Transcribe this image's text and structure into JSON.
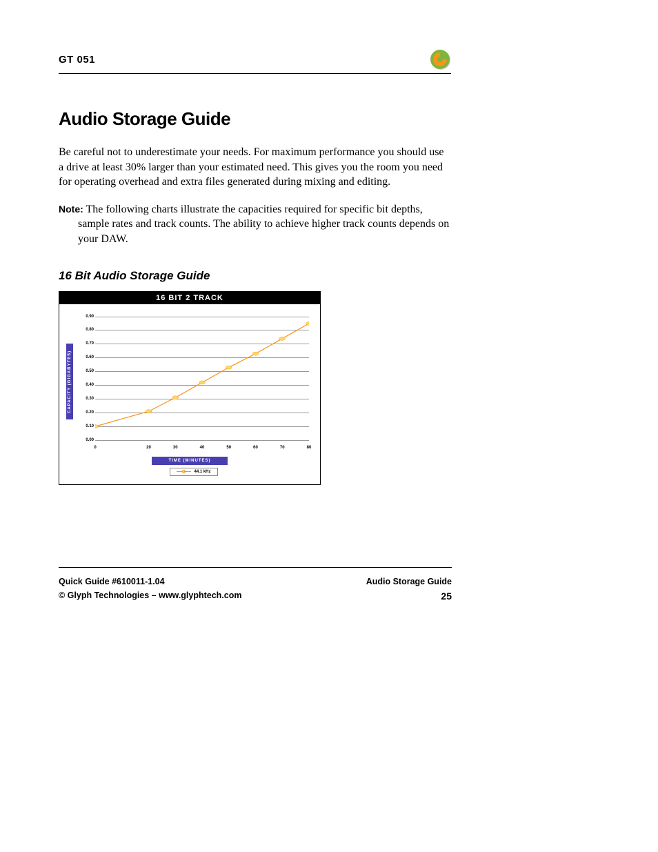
{
  "header": {
    "label": "GT 051"
  },
  "logo": {
    "outer_color": "#7fb53a",
    "inner_color": "#f7941e",
    "shadow_color": "#333333"
  },
  "title": "Audio Storage Guide",
  "intro": "Be careful not to underestimate your needs. For maximum performance you should use a drive at least 30% larger than your estimated need. This gives you the room you need for operating overhead and extra files generated during mixing and editing.",
  "note": {
    "label": "Note:",
    "text": "The following charts illustrate the capacities required for specific bit depths, sample rates and track counts. The ability to achieve higher track counts depends on your DAW."
  },
  "subtitle": "16 Bit Audio Storage Guide",
  "chart": {
    "type": "line",
    "title": "16 BIT 2 TRACK",
    "y_axis_label": "CAPACITY (GIGABYTES)",
    "x_axis_label": "TIME (MINUTES)",
    "ylim": [
      0.0,
      0.9
    ],
    "ytick_step": 0.1,
    "yticks": [
      "0.00",
      "0.10",
      "0.20",
      "0.30",
      "0.40",
      "0.50",
      "0.60",
      "0.70",
      "0.80",
      "0.90"
    ],
    "xlim": [
      0,
      80
    ],
    "xticks": [
      "0",
      "20",
      "30",
      "40",
      "50",
      "60",
      "70",
      "80"
    ],
    "xtick_values": [
      0,
      20,
      30,
      40,
      50,
      60,
      70,
      80
    ],
    "series": [
      {
        "name": "44.1 kHz",
        "color": "#f7941e",
        "marker_fill": "#ffd966",
        "marker_stroke": "#f7941e",
        "line_width": 2,
        "marker_size": 4,
        "points": [
          {
            "x": 0,
            "y": 0.1
          },
          {
            "x": 20,
            "y": 0.21
          },
          {
            "x": 30,
            "y": 0.31
          },
          {
            "x": 40,
            "y": 0.42
          },
          {
            "x": 50,
            "y": 0.53
          },
          {
            "x": 60,
            "y": 0.63
          },
          {
            "x": 70,
            "y": 0.74
          },
          {
            "x": 80,
            "y": 0.85
          }
        ]
      }
    ],
    "legend_label": "44.1 kHz",
    "grid_color": "#999999",
    "axis_label_bg": "#4a3fb0",
    "axis_label_color": "#ffffff",
    "title_bg": "#000000",
    "title_color": "#ffffff",
    "background": "#ffffff",
    "title_fontsize": 11,
    "tick_fontsize": 6
  },
  "footer": {
    "left1": "Quick Guide  #610011-1.04",
    "left2": "© Glyph Technologies – www.glyphtech.com",
    "right1": "Audio Storage Guide",
    "page": "25"
  }
}
